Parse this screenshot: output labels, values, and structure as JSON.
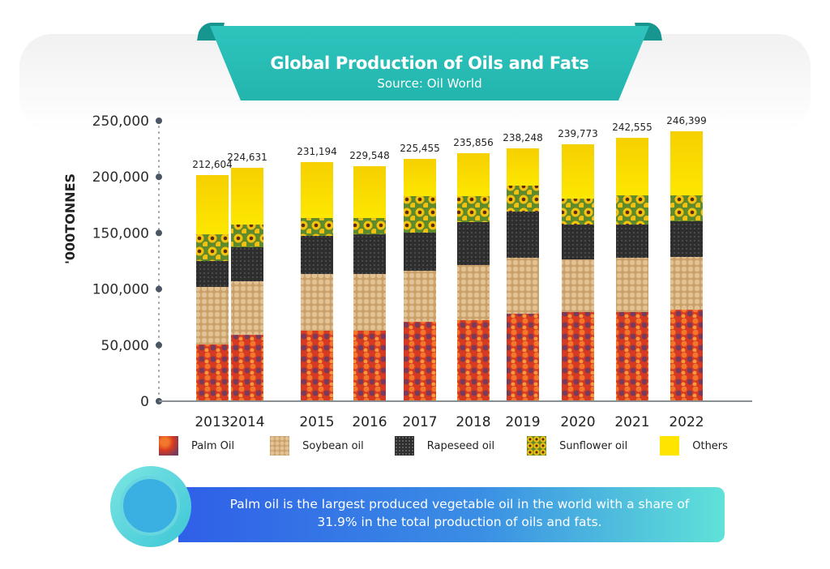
{
  "header": {
    "title": "Global Production of Oils and Fats",
    "subtitle": "Source: Oil World"
  },
  "note": {
    "text": "Palm oil is the largest produced vegetable oil in the world with a share of 31.9%  in the total production of oils and fats."
  },
  "chart_data": {
    "type": "bar",
    "stacked": true,
    "title": "Global Production of Oils and Fats",
    "subtitle": "Source: Oil World",
    "xlabel": "",
    "ylabel": "'000TONNES",
    "ylim": [
      0,
      250000
    ],
    "yticks": [
      0,
      50000,
      100000,
      150000,
      200000,
      250000
    ],
    "ytick_labels": [
      "0",
      "50,000",
      "100,000",
      "150,000",
      "200,000",
      "250,000"
    ],
    "grid": false,
    "legend_position": "bottom",
    "categories": [
      "2013",
      "2014",
      "2015",
      "2016",
      "2017",
      "2018",
      "2019",
      "2020",
      "2021",
      "2022"
    ],
    "total_labels": [
      "212,604",
      "224,631",
      "231,194",
      "229,548",
      "225,455",
      "235,856",
      "238,248",
      "239,773",
      "242,555",
      "246,399"
    ],
    "totals": [
      212604,
      224631,
      231194,
      229548,
      225455,
      235856,
      238248,
      239773,
      242555,
      246399
    ],
    "series": [
      {
        "name": "Palm Oil",
        "color": "#d9442b",
        "values": [
          50600,
          59200,
          62900,
          62900,
          70800,
          72300,
          78000,
          79500,
          79500,
          81600
        ]
      },
      {
        "name": "Soybean oil",
        "color": "#d6b27e",
        "values": [
          51300,
          47700,
          50500,
          50500,
          45500,
          49100,
          49900,
          46900,
          48400,
          47000
        ]
      },
      {
        "name": "Rapeseed oil",
        "color": "#3a3a3a",
        "values": [
          23100,
          30400,
          34000,
          35400,
          34000,
          38300,
          41200,
          31100,
          29600,
          31800
        ]
      },
      {
        "name": "Sunflower oil",
        "color": "#e8b816",
        "values": [
          23800,
          20200,
          15900,
          14500,
          32500,
          23100,
          23100,
          23100,
          26000,
          23100
        ]
      },
      {
        "name": "Others",
        "color": "#fbe100",
        "values": [
          52800,
          50600,
          49900,
          46200,
          33200,
          38300,
          33200,
          48400,
          51300,
          57100
        ]
      }
    ]
  }
}
